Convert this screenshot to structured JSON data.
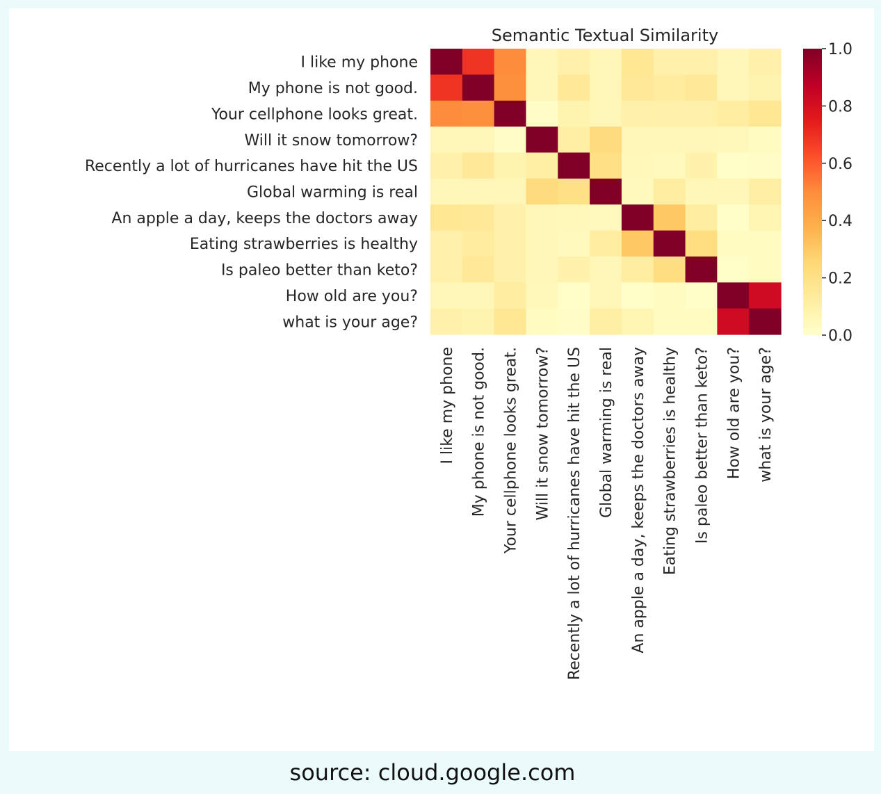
{
  "caption": "source: cloud.google.com",
  "chart_data": {
    "type": "heatmap",
    "title": "Semantic Textual Similarity",
    "xlabel": "",
    "ylabel": "",
    "labels": [
      "I like my phone",
      "My phone is not good.",
      "Your cellphone looks great.",
      "Will it snow tomorrow?",
      "Recently a lot of hurricanes have hit the US",
      "Global warming is real",
      "An apple a day, keeps the doctors away",
      "Eating strawberries is healthy",
      "Is paleo better than keto?",
      "How old are you?",
      "what is your age?"
    ],
    "values": [
      [
        1.0,
        0.69,
        0.5,
        0.06,
        0.1,
        0.06,
        0.16,
        0.1,
        0.1,
        0.06,
        0.1
      ],
      [
        0.69,
        1.0,
        0.49,
        0.06,
        0.15,
        0.06,
        0.15,
        0.13,
        0.15,
        0.06,
        0.08
      ],
      [
        0.5,
        0.49,
        1.0,
        0.02,
        0.08,
        0.06,
        0.1,
        0.1,
        0.1,
        0.12,
        0.16
      ],
      [
        0.06,
        0.06,
        0.02,
        1.0,
        0.11,
        0.23,
        0.06,
        0.06,
        0.06,
        0.05,
        0.03
      ],
      [
        0.1,
        0.15,
        0.08,
        0.11,
        1.0,
        0.2,
        0.05,
        0.04,
        0.09,
        0.01,
        0.02
      ],
      [
        0.06,
        0.06,
        0.06,
        0.23,
        0.2,
        1.0,
        0.04,
        0.12,
        0.06,
        0.06,
        0.11
      ],
      [
        0.16,
        0.15,
        0.1,
        0.06,
        0.05,
        0.04,
        1.0,
        0.3,
        0.12,
        0.01,
        0.07
      ],
      [
        0.1,
        0.13,
        0.1,
        0.06,
        0.04,
        0.12,
        0.3,
        1.0,
        0.22,
        0.03,
        0.03
      ],
      [
        0.1,
        0.15,
        0.1,
        0.06,
        0.09,
        0.06,
        0.12,
        0.22,
        1.0,
        0.01,
        0.03
      ],
      [
        0.06,
        0.06,
        0.12,
        0.05,
        0.01,
        0.06,
        0.01,
        0.03,
        0.01,
        1.0,
        0.82
      ],
      [
        0.1,
        0.08,
        0.16,
        0.03,
        0.02,
        0.11,
        0.07,
        0.03,
        0.03,
        0.82,
        1.0
      ]
    ],
    "vmin": 0.0,
    "vmax": 1.0,
    "colorscale": "YlOrRd",
    "colorbar_ticks": [
      "0.0",
      "0.2",
      "0.4",
      "0.6",
      "0.8",
      "1.0"
    ],
    "colorbar_tick_values": [
      0.0,
      0.2,
      0.4,
      0.6,
      0.8,
      1.0
    ],
    "grid": false
  }
}
